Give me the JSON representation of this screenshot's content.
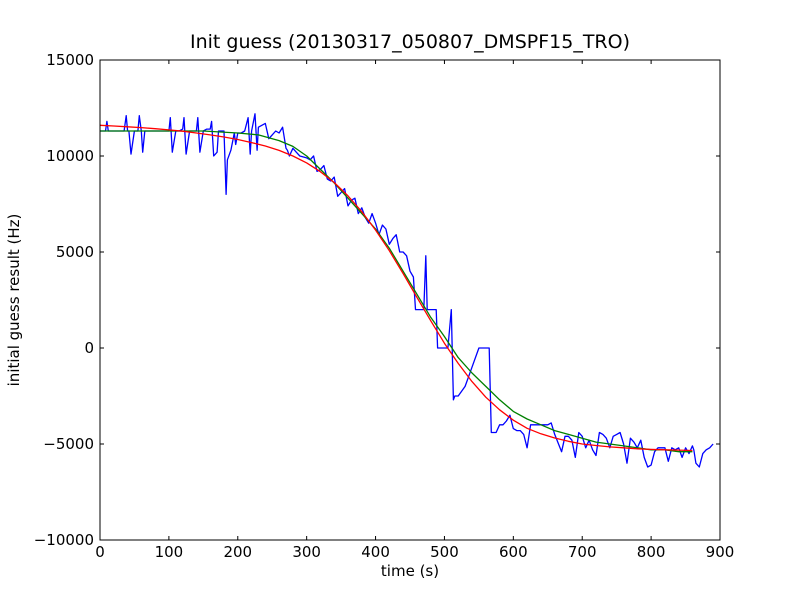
{
  "chart_data": {
    "type": "line",
    "title": "Init guess (20130317_050807_DMSPF15_TRO)",
    "xlabel": "time (s)",
    "ylabel": "initial guess result (Hz)",
    "xlim": [
      0,
      900
    ],
    "ylim": [
      -10000,
      15000
    ],
    "x_ticks": [
      0,
      100,
      200,
      300,
      400,
      500,
      600,
      700,
      800,
      900
    ],
    "x_tick_labels": [
      "0",
      "100",
      "200",
      "300",
      "400",
      "500",
      "600",
      "700",
      "800",
      "900"
    ],
    "y_ticks": [
      -10000,
      -5000,
      0,
      5000,
      10000,
      15000
    ],
    "y_tick_labels": [
      "−10000",
      "−5000",
      "0",
      "5000",
      "10000",
      "15000"
    ],
    "grid": false,
    "legend": "none",
    "series": [
      {
        "color": "#0000ff",
        "x": [
          0,
          8,
          10,
          12,
          15,
          20,
          25,
          30,
          35,
          38,
          40,
          42,
          45,
          50,
          55,
          57,
          60,
          62,
          65,
          70,
          80,
          90,
          95,
          100,
          102,
          105,
          110,
          115,
          120,
          122,
          125,
          130,
          135,
          140,
          142,
          145,
          150,
          155,
          160,
          162,
          165,
          170,
          172,
          175,
          180,
          183,
          185,
          190,
          195,
          197,
          200,
          205,
          210,
          215,
          218,
          220,
          225,
          228,
          230,
          240,
          245,
          250,
          255,
          260,
          265,
          270,
          272,
          275,
          280,
          285,
          290,
          300,
          305,
          310,
          315,
          320,
          325,
          330,
          335,
          340,
          345,
          350,
          355,
          360,
          365,
          370,
          375,
          380,
          385,
          390,
          395,
          400,
          405,
          410,
          415,
          420,
          425,
          430,
          435,
          440,
          445,
          450,
          455,
          458,
          460,
          465,
          470,
          473,
          475,
          480,
          485,
          488,
          490,
          495,
          500,
          505,
          510,
          513,
          515,
          518,
          520,
          530,
          540,
          550,
          555,
          560,
          565,
          568,
          570,
          575,
          580,
          585,
          590,
          595,
          600,
          605,
          610,
          615,
          620,
          625,
          630,
          640,
          645,
          650,
          655,
          660,
          670,
          675,
          680,
          685,
          690,
          695,
          700,
          705,
          710,
          715,
          720,
          725,
          730,
          735,
          740,
          745,
          750,
          755,
          760,
          765,
          770,
          775,
          780,
          785,
          790,
          795,
          800,
          805,
          810,
          815,
          820,
          825,
          830,
          835,
          840,
          845,
          850,
          855,
          860,
          862,
          865,
          870,
          875,
          880,
          885,
          890
        ],
        "y": [
          11300,
          11300,
          11800,
          11300,
          11300,
          11300,
          11300,
          11300,
          11300,
          12100,
          11300,
          11300,
          10100,
          11300,
          11300,
          12100,
          11300,
          10200,
          11300,
          11300,
          11300,
          11300,
          11300,
          11300,
          12000,
          10200,
          11300,
          11300,
          11400,
          12000,
          10100,
          11300,
          11300,
          11300,
          12000,
          10200,
          11300,
          11400,
          11400,
          11800,
          10000,
          10200,
          11300,
          11300,
          11300,
          8000,
          9800,
          10300,
          11200,
          10600,
          11200,
          11200,
          11300,
          12000,
          10100,
          11300,
          12200,
          10300,
          11500,
          11700,
          10900,
          11100,
          11300,
          11200,
          11500,
          10400,
          10300,
          10000,
          10400,
          10200,
          10000,
          9900,
          9800,
          10000,
          9200,
          9300,
          9500,
          8800,
          8700,
          8900,
          7900,
          8100,
          8300,
          7400,
          7700,
          7800,
          7000,
          7300,
          6800,
          6500,
          7000,
          6500,
          5900,
          6400,
          6200,
          5400,
          5700,
          5900,
          5000,
          5000,
          4800,
          4000,
          3700,
          2000,
          2000,
          2000,
          2000,
          4800,
          2000,
          2000,
          2000,
          2000,
          0,
          0,
          0,
          0,
          2000,
          -2700,
          -2500,
          -2500,
          -2500,
          -2000,
          -1000,
          0,
          0,
          0,
          0,
          -4400,
          -4400,
          -4400,
          -4000,
          -4000,
          -3800,
          -3500,
          -4200,
          -4300,
          -4300,
          -4500,
          -5200,
          -4000,
          -4000,
          -4000,
          -4000,
          -4000,
          -3900,
          -4500,
          -5400,
          -4600,
          -4600,
          -4800,
          -5700,
          -4400,
          -4600,
          -5200,
          -4800,
          -5300,
          -5600,
          -4400,
          -4500,
          -4700,
          -5200,
          -4600,
          -4500,
          -4400,
          -5000,
          -6000,
          -4700,
          -4900,
          -5200,
          -4800,
          -5700,
          -6200,
          -6100,
          -5400,
          -5200,
          -5200,
          -5200,
          -5900,
          -5200,
          -5300,
          -5200,
          -5700,
          -5200,
          -5500,
          -5100,
          -5300,
          -6000,
          -6200,
          -5500,
          -5300,
          -5200,
          -5000
        ]
      },
      {
        "color": "#008000",
        "x": [
          0,
          50,
          100,
          150,
          200,
          230,
          260,
          280,
          300,
          320,
          340,
          360,
          380,
          400,
          420,
          440,
          460,
          480,
          500,
          520,
          540,
          560,
          580,
          600,
          620,
          640,
          660,
          680,
          700,
          720,
          740,
          760,
          780,
          800,
          820,
          840,
          860
        ],
        "y": [
          11300,
          11300,
          11300,
          11300,
          11200,
          11100,
          10800,
          10500,
          10000,
          9300,
          8600,
          7800,
          7000,
          6200,
          5200,
          4000,
          2800,
          1600,
          600,
          -500,
          -1300,
          -2000,
          -2700,
          -3300,
          -3700,
          -4000,
          -4300,
          -4500,
          -4700,
          -4900,
          -5000,
          -5100,
          -5200,
          -5300,
          -5300,
          -5400,
          -5400
        ]
      },
      {
        "color": "#ff0000",
        "x": [
          0,
          20,
          40,
          60,
          80,
          100,
          120,
          140,
          160,
          180,
          200,
          220,
          240,
          260,
          280,
          300,
          320,
          340,
          360,
          380,
          400,
          420,
          440,
          460,
          480,
          500,
          520,
          540,
          560,
          580,
          600,
          620,
          640,
          660,
          680,
          700,
          720,
          740,
          760,
          780,
          800,
          820,
          840,
          860
        ],
        "y": [
          11600,
          11560,
          11520,
          11480,
          11420,
          11360,
          11290,
          11200,
          11100,
          10990,
          10860,
          10700,
          10520,
          10290,
          10000,
          9640,
          9180,
          8620,
          7920,
          7100,
          6140,
          5070,
          3880,
          2640,
          1420,
          250,
          -800,
          -1750,
          -2560,
          -3220,
          -3760,
          -4180,
          -4470,
          -4690,
          -4860,
          -5000,
          -5080,
          -5150,
          -5200,
          -5250,
          -5280,
          -5300,
          -5320,
          -5340
        ]
      }
    ]
  }
}
